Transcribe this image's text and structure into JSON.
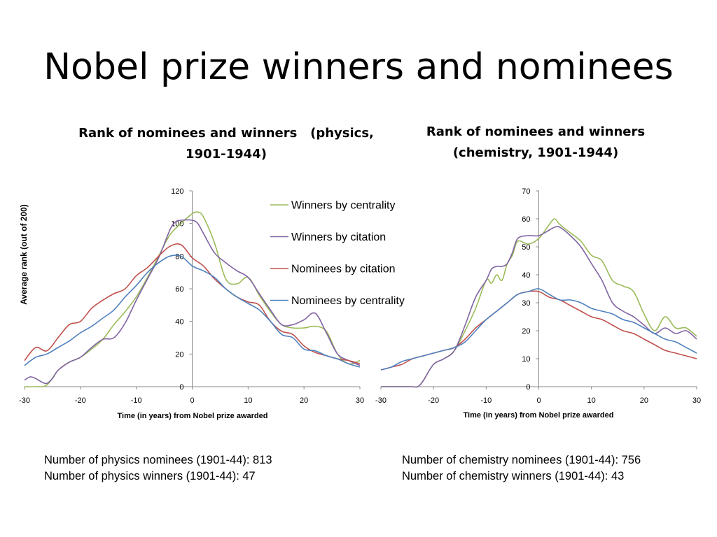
{
  "slide": {
    "title": "Nobel prize winners and nominees"
  },
  "notes": {
    "physics_nominees": "Number of physics nominees (1901-44): 813",
    "physics_winners": "Number of physics winners (1901-44): 47",
    "chemistry_nominees": "Number of chemistry nominees (1901-44): 756",
    "chemistry_winners": "Number of chemistry winners (1901-44): 43"
  },
  "colors": {
    "winners_by_centrality": "#9bbb59",
    "winners_by_citation": "#8064a2",
    "nominees_by_citation": "#c0504d",
    "nominees_by_centrality": "#4f81bd",
    "axis": "#888888"
  },
  "chart_data": [
    {
      "type": "line",
      "title_line1": "Rank of nominees and winners   (physics,",
      "title_line2": "1901-1944)",
      "xlabel": "Time (in years) from Nobel prize awarded",
      "ylabel": "Average rank (out of 200)",
      "xlim": [
        -30,
        30
      ],
      "ylim": [
        0,
        120
      ],
      "xticks": [
        -30,
        -20,
        -10,
        0,
        10,
        20,
        30
      ],
      "yticks": [
        0,
        20,
        40,
        60,
        80,
        100,
        120
      ],
      "legend": "right-top",
      "series": [
        {
          "name": "Winners by centrality",
          "color_key": "winners_by_centrality",
          "x": [
            -30,
            -28,
            -26,
            -24,
            -22,
            -20,
            -18,
            -16,
            -14,
            -12,
            -10,
            -8,
            -6,
            -4,
            -2,
            0,
            1,
            2,
            4,
            6,
            8,
            10,
            12,
            14,
            16,
            18,
            20,
            22,
            24,
            26,
            28,
            30
          ],
          "y": [
            0,
            0,
            1,
            10,
            15,
            18,
            23,
            29,
            38,
            46,
            55,
            67,
            80,
            93,
            100,
            106,
            107,
            104,
            88,
            66,
            63,
            67,
            56,
            46,
            38,
            36,
            36,
            37,
            34,
            20,
            14,
            16
          ]
        },
        {
          "name": "Winners by citation",
          "color_key": "winners_by_citation",
          "x": [
            -30,
            -29,
            -28,
            -27,
            -26,
            -25,
            -24,
            -22,
            -20,
            -18,
            -16,
            -14,
            -12,
            -10,
            -8,
            -6,
            -4,
            -3,
            -2,
            0,
            1,
            2,
            4,
            6,
            8,
            10,
            12,
            14,
            16,
            18,
            20,
            22,
            24,
            26,
            28,
            30
          ],
          "y": [
            4,
            6,
            5,
            3,
            2,
            5,
            10,
            15,
            18,
            24,
            29,
            30,
            39,
            53,
            66,
            79,
            96,
            101,
            102,
            102,
            100,
            94,
            82,
            76,
            71,
            67,
            57,
            47,
            38,
            38,
            41,
            45,
            33,
            20,
            16,
            13
          ]
        },
        {
          "name": "Nominees by citation",
          "color_key": "nominees_by_citation",
          "x": [
            -30,
            -28,
            -26,
            -24,
            -22,
            -20,
            -18,
            -16,
            -14,
            -12,
            -10,
            -8,
            -6,
            -4,
            -2,
            0,
            2,
            4,
            6,
            8,
            10,
            12,
            14,
            16,
            18,
            20,
            22,
            24,
            26,
            28,
            30
          ],
          "y": [
            16,
            24,
            22,
            30,
            38,
            40,
            48,
            53,
            57,
            60,
            68,
            73,
            80,
            86,
            87,
            79,
            74,
            66,
            60,
            55,
            52,
            50,
            40,
            34,
            32,
            25,
            21,
            19,
            17,
            16,
            14
          ]
        },
        {
          "name": "Nominees by centrality",
          "color_key": "nominees_by_centrality",
          "x": [
            -30,
            -28,
            -26,
            -24,
            -22,
            -20,
            -18,
            -16,
            -14,
            -12,
            -10,
            -8,
            -6,
            -4,
            -2,
            0,
            2,
            4,
            6,
            8,
            10,
            12,
            14,
            16,
            18,
            20,
            22,
            24,
            26,
            28,
            30
          ],
          "y": [
            13,
            18,
            20,
            24,
            28,
            33,
            37,
            42,
            47,
            55,
            62,
            70,
            76,
            80,
            80,
            74,
            71,
            67,
            60,
            55,
            51,
            47,
            40,
            32,
            30,
            23,
            22,
            19,
            17,
            14,
            12
          ]
        }
      ]
    },
    {
      "type": "line",
      "title_line1": "Rank of nominees and winners",
      "title_line2": "(chemistry, 1901-1944)",
      "xlabel": "Time (in years) from Nobel prize awarded",
      "ylabel": "",
      "xlim": [
        -30,
        30
      ],
      "ylim": [
        0,
        70
      ],
      "xticks": [
        -30,
        -20,
        -10,
        0,
        10,
        20,
        30
      ],
      "yticks": [
        0,
        10,
        20,
        30,
        40,
        50,
        60,
        70
      ],
      "series": [
        {
          "name": "Winners by centrality",
          "color_key": "winners_by_centrality",
          "x": [
            -30,
            -28,
            -26,
            -24,
            -23,
            -22,
            -20,
            -18,
            -16,
            -14,
            -12,
            -10,
            -9,
            -8,
            -7,
            -6,
            -5,
            -4,
            -2,
            0,
            2,
            3,
            4,
            6,
            8,
            10,
            12,
            14,
            16,
            18,
            20,
            22,
            24,
            26,
            28,
            30
          ],
          "y": [
            0,
            0,
            0,
            0,
            0,
            2,
            8,
            10,
            13,
            20,
            28,
            38,
            37,
            40,
            38,
            44,
            47,
            52,
            51,
            53,
            58,
            60,
            58,
            55,
            52,
            47,
            45,
            38,
            36,
            34,
            26,
            20,
            25,
            21,
            21,
            18
          ]
        },
        {
          "name": "Winners by citation",
          "color_key": "winners_by_citation",
          "x": [
            -30,
            -28,
            -26,
            -24,
            -23,
            -22,
            -20,
            -18,
            -16,
            -14,
            -12,
            -10,
            -9,
            -8,
            -7,
            -6,
            -5,
            -4,
            -2,
            0,
            2,
            3,
            4,
            6,
            8,
            10,
            12,
            14,
            16,
            18,
            20,
            22,
            24,
            26,
            28,
            30
          ],
          "y": [
            0,
            0,
            0,
            0,
            0,
            2,
            8,
            10,
            13,
            22,
            32,
            38,
            42,
            43,
            43,
            44,
            48,
            53,
            54,
            54,
            56,
            57,
            57,
            54,
            50,
            44,
            38,
            30,
            27,
            25,
            22,
            19,
            21,
            19,
            20,
            17
          ]
        },
        {
          "name": "Nominees by citation",
          "color_key": "nominees_by_citation",
          "x": [
            -30,
            -28,
            -26,
            -24,
            -22,
            -20,
            -18,
            -16,
            -14,
            -12,
            -10,
            -8,
            -6,
            -4,
            -2,
            0,
            2,
            4,
            6,
            8,
            10,
            12,
            14,
            16,
            18,
            20,
            22,
            24,
            26,
            28,
            30
          ],
          "y": [
            6,
            7,
            8,
            10,
            11,
            12,
            13,
            14,
            17,
            21,
            24,
            27,
            30,
            33,
            34,
            34,
            32,
            31,
            29,
            27,
            25,
            24,
            22,
            20,
            19,
            17,
            15,
            13,
            12,
            11,
            10
          ]
        },
        {
          "name": "Nominees by centrality",
          "color_key": "nominees_by_centrality",
          "x": [
            -30,
            -28,
            -26,
            -24,
            -22,
            -20,
            -18,
            -16,
            -14,
            -12,
            -10,
            -8,
            -6,
            -4,
            -2,
            0,
            2,
            4,
            6,
            8,
            10,
            12,
            14,
            16,
            18,
            20,
            22,
            24,
            26,
            28,
            30
          ],
          "y": [
            6,
            7,
            9,
            10,
            11,
            12,
            13,
            14,
            16,
            20,
            24,
            27,
            30,
            33,
            34,
            35,
            33,
            31,
            31,
            30,
            28,
            27,
            26,
            24,
            23,
            21,
            19,
            17,
            16,
            14,
            12
          ]
        }
      ]
    }
  ]
}
